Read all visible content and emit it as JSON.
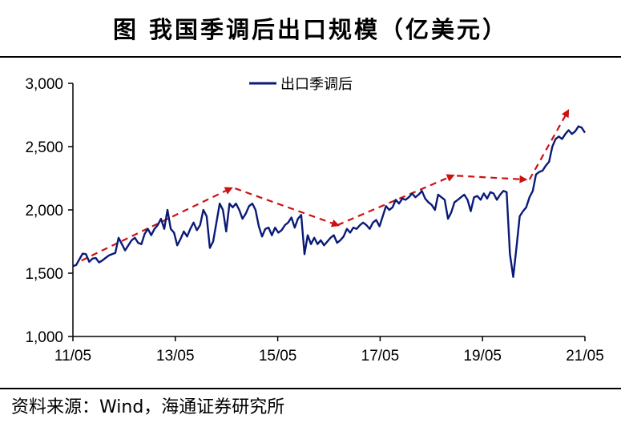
{
  "header": {
    "title": "图  我国季调后出口规模（亿美元）"
  },
  "footer": {
    "source": "资料来源：Wind，海通证券研究所"
  },
  "colors": {
    "series": "#0a1a78",
    "trend": "#cc1111",
    "axis": "#000000"
  },
  "chart_data": {
    "type": "line",
    "title": "图  我国季调后出口规模（亿美元）",
    "xlabel": "",
    "ylabel": "",
    "ylim": [
      1000,
      3000
    ],
    "yticks": [
      1000,
      1500,
      2000,
      2500,
      3000
    ],
    "ytick_labels": [
      "1,000",
      "1,500",
      "2,000",
      "2,500",
      "3,000"
    ],
    "xlim": [
      0,
      120
    ],
    "xticks": [
      0,
      24,
      48,
      72,
      96,
      120
    ],
    "xtick_labels": [
      "11/05",
      "13/05",
      "15/05",
      "17/05",
      "19/05",
      "21/05"
    ],
    "x_unit": "months since 11/05",
    "grid": false,
    "legend": {
      "position": "top-center",
      "entries": [
        "出口季调后"
      ]
    },
    "series": [
      {
        "name": "出口季调后",
        "values": [
          1555,
          1565,
          1610,
          1655,
          1650,
          1590,
          1615,
          1620,
          1585,
          1600,
          1620,
          1640,
          1650,
          1660,
          1780,
          1730,
          1680,
          1720,
          1760,
          1780,
          1740,
          1730,
          1810,
          1850,
          1800,
          1850,
          1880,
          1930,
          1850,
          2000,
          1850,
          1820,
          1720,
          1770,
          1830,
          1790,
          1850,
          1900,
          1840,
          1880,
          2000,
          1950,
          1700,
          1750,
          1900,
          2050,
          2000,
          1830,
          2050,
          2020,
          2050,
          2000,
          1930,
          1970,
          2030,
          2050,
          2000,
          1870,
          1790,
          1850,
          1860,
          1800,
          1860,
          1820,
          1840,
          1880,
          1900,
          1940,
          1860,
          1930,
          1960,
          1650,
          1800,
          1730,
          1780,
          1730,
          1760,
          1720,
          1750,
          1780,
          1800,
          1740,
          1760,
          1790,
          1850,
          1820,
          1860,
          1850,
          1880,
          1900,
          1880,
          1850,
          1900,
          1920,
          1870,
          1950,
          2030,
          2000,
          2020,
          2080,
          2050,
          2090,
          2080,
          2100,
          2130,
          2100,
          2120,
          2150,
          2090,
          2060,
          2040,
          2000,
          2120,
          2100,
          2080,
          1930,
          1980,
          2060,
          2080,
          2100,
          2120,
          2080,
          1990,
          2100,
          2110,
          2080,
          2130,
          2090,
          2140,
          2130,
          2080,
          2120,
          2150,
          2140,
          1650,
          1470,
          1700,
          1950,
          1990,
          2020,
          2100,
          2150,
          2280,
          2300,
          2310,
          2350,
          2380,
          2500,
          2560,
          2580,
          2560,
          2600,
          2630,
          2600,
          2620,
          2660,
          2650,
          2610
        ]
      }
    ],
    "annotations": [
      {
        "type": "trend-arrow",
        "from": [
          2,
          1600
        ],
        "to": [
          37,
          2170
        ]
      },
      {
        "type": "trend-arrow",
        "from": [
          38,
          2170
        ],
        "to": [
          62,
          1880
        ]
      },
      {
        "type": "trend-arrow",
        "from": [
          62,
          1880
        ],
        "to": [
          89,
          2270
        ]
      },
      {
        "type": "trend-arrow",
        "from": [
          90,
          2270
        ],
        "to": [
          106,
          2240
        ]
      },
      {
        "type": "trend-arrow",
        "from": [
          107,
          2240
        ],
        "to": [
          116,
          2780
        ]
      }
    ]
  }
}
